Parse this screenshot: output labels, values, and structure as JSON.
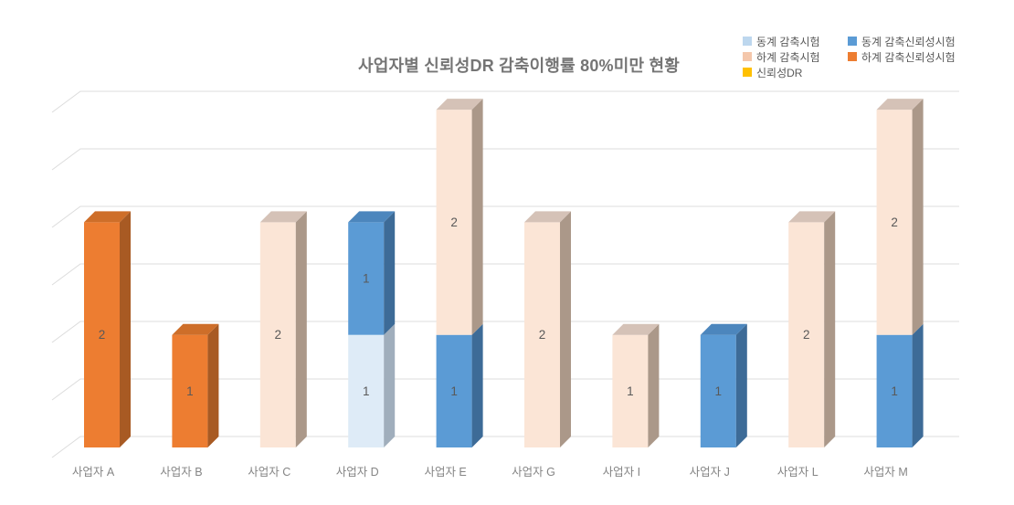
{
  "page": {
    "background": "#ffffff"
  },
  "chart_data": {
    "type": "bar",
    "variant": "3d-stacked-column",
    "title": "사업자별 신뢰성DR 감축이행률 80%미만 현황",
    "categories": [
      "사업자 A",
      "사업자 B",
      "사업자 C",
      "사업자 D",
      "사업자 E",
      "사업자 G",
      "사업자 I",
      "사업자 J",
      "사업자 L",
      "사업자 M"
    ],
    "series": [
      {
        "name": "동계 감축시험",
        "values": [
          0,
          0,
          0,
          1,
          0,
          0,
          0,
          0,
          0,
          0
        ],
        "color_front": "#DEEBF7",
        "color_side": "#A0AEBC",
        "color_top": "#C2CEDB"
      },
      {
        "name": "동계 감축신뢰성시험",
        "values": [
          0,
          0,
          0,
          1,
          1,
          0,
          0,
          1,
          0,
          1
        ],
        "color_front": "#5B9BD5",
        "color_side": "#3D6B97",
        "color_top": "#4C86BD"
      },
      {
        "name": "하계 감축시험",
        "values": [
          0,
          0,
          2,
          0,
          2,
          2,
          1,
          0,
          2,
          2
        ],
        "color_front": "#FBE5D6",
        "color_side": "#AB9889",
        "color_top": "#D5C2B7"
      },
      {
        "name": "하계 감축신뢰성시험",
        "values": [
          2,
          1,
          0,
          0,
          0,
          0,
          0,
          0,
          0,
          0
        ],
        "color_front": "#ED7D31",
        "color_side": "#A85A23",
        "color_top": "#CE6E29"
      },
      {
        "name": "신뢰성DR",
        "values": [
          0,
          0,
          0,
          0,
          0,
          0,
          0,
          0,
          0,
          0
        ],
        "color_front": "#FFC000",
        "color_side": "#B38600",
        "color_top": "#D9A300"
      }
    ],
    "bar_value_labels": {
      "사업자 A": [
        "2"
      ],
      "사업자 B": [
        "1"
      ],
      "사업자 C": [
        "2"
      ],
      "사업자 D": [
        "1",
        "1"
      ],
      "사업자 E": [
        "1",
        "2"
      ],
      "사업자 G": [
        "2"
      ],
      "사업자 I": [
        "1"
      ],
      "사업자 J": [
        "1"
      ],
      "사업자 L": [
        "2"
      ],
      "사업자 M": [
        "1",
        "2"
      ]
    },
    "legend": {
      "position": "top-right",
      "columns": 2,
      "items": [
        {
          "label": "동계 감축시험",
          "color": "#BDD7EE"
        },
        {
          "label": "동계 감축신뢰성시험",
          "color": "#5B9BD5"
        },
        {
          "label": "하계 감축시험",
          "color": "#F4C7AB"
        },
        {
          "label": "하계 감축신뢰성시험",
          "color": "#ED7D31"
        },
        {
          "label": "신뢰성DR",
          "color": "#FFC000"
        }
      ]
    },
    "yaxis": {
      "min": 0,
      "max": 3,
      "gridline_interval": 0.5,
      "gridline_count": 7,
      "tick_labels_visible": false
    },
    "colors": {
      "gridline": "#dcdcdc",
      "title_text": "#757575",
      "axis_label_text": "#858585",
      "value_label_text": "#595959",
      "background": "#ffffff"
    }
  }
}
